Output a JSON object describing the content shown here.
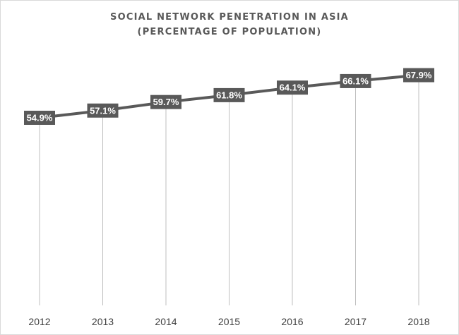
{
  "chart_data": {
    "type": "line",
    "title_line1": "SOCIAL NETWORK PENETRATION IN ASIA",
    "title_line2": "(PERCENTAGE OF POPULATION)",
    "categories": [
      "2012",
      "2013",
      "2014",
      "2015",
      "2016",
      "2017",
      "2018"
    ],
    "series": [
      {
        "name": "Social network penetration",
        "values": [
          54.9,
          57.1,
          59.7,
          61.8,
          64.1,
          66.1,
          67.9
        ],
        "labels": [
          "54.9%",
          "57.1%",
          "59.7%",
          "61.8%",
          "64.1%",
          "66.1%",
          "67.9%"
        ]
      }
    ],
    "xlabel": "",
    "ylabel": "",
    "ylim": [
      0,
      100
    ],
    "grid": false,
    "drop_lines": true,
    "legend": "none"
  },
  "colors": {
    "line": "#595959",
    "label_bg": "#595959",
    "label_text": "#ffffff",
    "drop_line": "#bfbfbf",
    "title": "#595959"
  }
}
